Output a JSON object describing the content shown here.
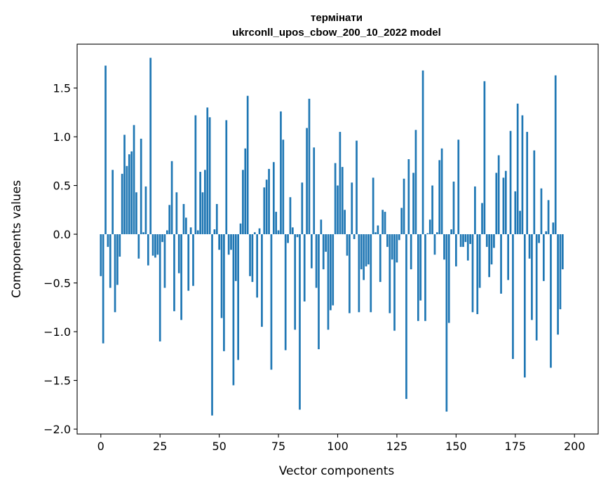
{
  "chart_data": {
    "type": "bar",
    "title_line1": "термінати",
    "title_line2": "ukrconll_upos_cbow_200_10_2022 model",
    "xlabel": "Vector components",
    "ylabel": "Components values",
    "xlim": [
      -10,
      210
    ],
    "ylim": [
      -2.05,
      1.95
    ],
    "xticks": [
      0,
      25,
      50,
      75,
      100,
      125,
      150,
      175,
      200
    ],
    "yticks": [
      -2.0,
      -1.5,
      -1.0,
      -0.5,
      0.0,
      0.5,
      1.0,
      1.5
    ],
    "ytick_labels": [
      "−2.0",
      "−1.5",
      "−1.0",
      "−0.5",
      "0.0",
      "0.5",
      "1.0",
      "1.5"
    ],
    "bar_color": "#1f77b4",
    "values": [
      -0.43,
      -1.12,
      1.73,
      -0.13,
      -0.55,
      0.66,
      -0.8,
      -0.52,
      -0.23,
      0.62,
      1.02,
      0.7,
      0.82,
      0.85,
      1.12,
      0.43,
      -0.25,
      0.98,
      0.02,
      0.49,
      -0.32,
      1.81,
      -0.22,
      -0.24,
      -0.21,
      -1.1,
      -0.08,
      -0.55,
      0.04,
      0.3,
      0.75,
      -0.79,
      0.43,
      -0.4,
      -0.88,
      0.31,
      0.17,
      -0.58,
      0.07,
      -0.53,
      1.22,
      0.04,
      0.64,
      0.43,
      0.66,
      1.3,
      1.2,
      -1.86,
      0.05,
      0.31,
      -0.16,
      -0.86,
      -1.2,
      1.17,
      -0.21,
      -0.16,
      -1.55,
      -0.48,
      -1.29,
      0.11,
      0.66,
      0.88,
      1.42,
      -0.43,
      -0.49,
      0.02,
      -0.65,
      0.06,
      -0.95,
      0.48,
      0.56,
      0.67,
      -1.39,
      0.74,
      0.23,
      0.04,
      1.26,
      0.97,
      -1.19,
      -0.09,
      0.38,
      0.07,
      -0.98,
      -0.03,
      -1.8,
      0.53,
      -0.69,
      1.09,
      1.39,
      -0.35,
      0.89,
      -0.55,
      -1.18,
      0.15,
      -0.36,
      -0.18,
      -0.98,
      -0.78,
      -0.73,
      0.73,
      0.5,
      1.05,
      0.69,
      0.25,
      -0.22,
      -0.81,
      0.53,
      -0.05,
      0.96,
      -0.8,
      -0.36,
      -0.47,
      -0.33,
      -0.31,
      -0.8,
      0.58,
      0.02,
      0.09,
      -0.49,
      0.25,
      0.23,
      -0.13,
      -0.81,
      -0.26,
      -0.99,
      -0.29,
      -0.06,
      0.27,
      0.57,
      -1.69,
      0.77,
      -0.36,
      0.63,
      1.07,
      -0.89,
      -0.68,
      1.68,
      -0.89,
      0.01,
      0.15,
      0.5,
      -0.21,
      0.02,
      0.76,
      0.88,
      -0.26,
      -1.82,
      -0.91,
      0.05,
      0.54,
      -0.33,
      0.97,
      -0.13,
      -0.13,
      -0.08,
      -0.27,
      -0.1,
      -0.8,
      0.49,
      -0.82,
      -0.55,
      0.32,
      1.57,
      -0.13,
      -0.44,
      -0.31,
      -0.14,
      0.63,
      0.81,
      -0.61,
      0.58,
      0.65,
      -0.47,
      1.06,
      -1.28,
      0.44,
      1.34,
      0.24,
      1.22,
      -1.47,
      1.05,
      -0.25,
      -0.88,
      0.86,
      -1.09,
      -0.09,
      0.47,
      -0.48,
      0.03,
      0.35,
      -1.37,
      0.12,
      1.63,
      -1.03,
      -0.77,
      -0.36
    ]
  }
}
